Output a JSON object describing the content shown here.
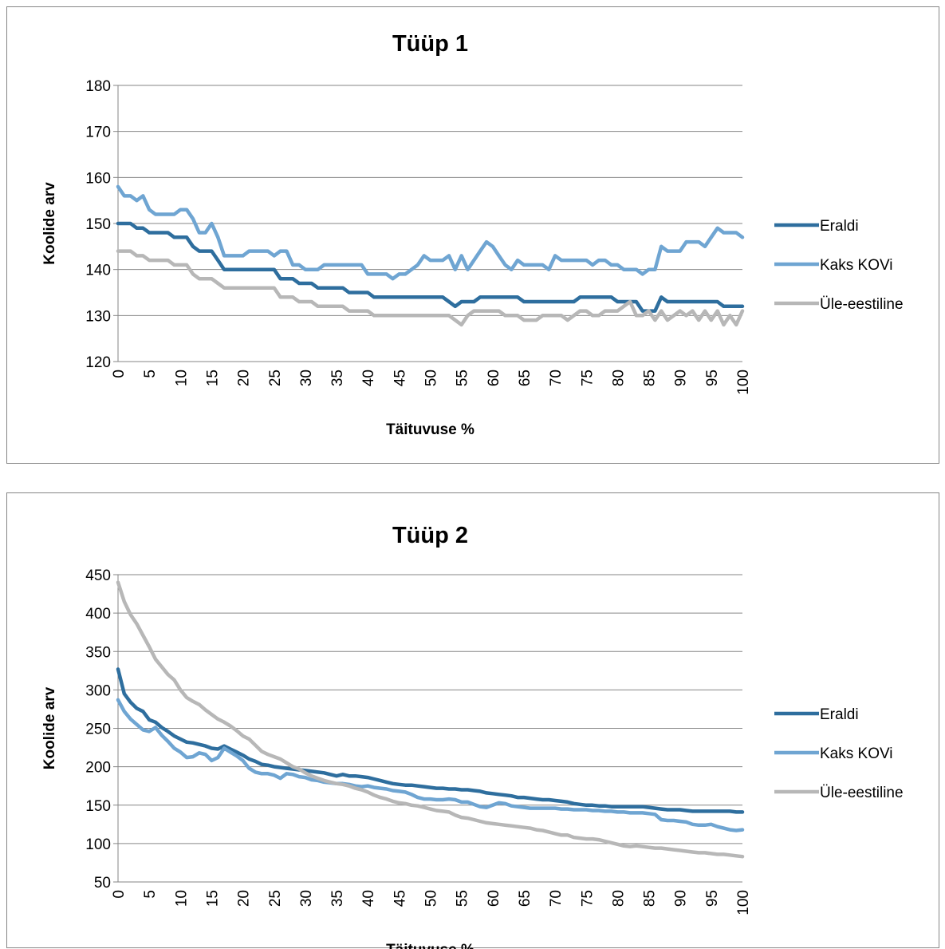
{
  "chart_data": [
    {
      "type": "line",
      "title": "Tüüp 1",
      "xlabel": "Täituvuse %",
      "ylabel": "Koolide arv",
      "xlim": [
        0,
        100
      ],
      "ylim": [
        120,
        180
      ],
      "yticks": [
        "120",
        "130",
        "140",
        "150",
        "160",
        "170",
        "180"
      ],
      "xticks": [
        "0",
        "5",
        "10",
        "15",
        "20",
        "25",
        "30",
        "35",
        "40",
        "45",
        "50",
        "55",
        "60",
        "65",
        "70",
        "75",
        "80",
        "85",
        "90",
        "95",
        "100"
      ],
      "grid": true,
      "legend_position": "right",
      "series": [
        {
          "name": "Eraldi",
          "color": "#2e6e9e",
          "values": [
            150,
            150,
            150,
            149,
            149,
            148,
            148,
            148,
            148,
            147,
            147,
            147,
            145,
            144,
            144,
            144,
            142,
            140,
            140,
            140,
            140,
            140,
            140,
            140,
            140,
            140,
            138,
            138,
            138,
            137,
            137,
            137,
            136,
            136,
            136,
            136,
            136,
            135,
            135,
            135,
            135,
            134,
            134,
            134,
            134,
            134,
            134,
            134,
            134,
            134,
            134,
            134,
            134,
            133,
            132,
            133,
            133,
            133,
            134,
            134,
            134,
            134,
            134,
            134,
            134,
            133,
            133,
            133,
            133,
            133,
            133,
            133,
            133,
            133,
            134,
            134,
            134,
            134,
            134,
            134,
            133,
            133,
            133,
            133,
            131,
            131,
            131,
            134,
            133,
            133,
            133,
            133,
            133,
            133,
            133,
            133,
            133,
            132,
            132,
            132,
            132
          ]
        },
        {
          "name": "Kaks KOVi",
          "color": "#6fa5d2",
          "values": [
            158,
            156,
            156,
            155,
            156,
            153,
            152,
            152,
            152,
            152,
            153,
            153,
            151,
            148,
            148,
            150,
            147,
            143,
            143,
            143,
            143,
            144,
            144,
            144,
            144,
            143,
            144,
            144,
            141,
            141,
            140,
            140,
            140,
            141,
            141,
            141,
            141,
            141,
            141,
            141,
            139,
            139,
            139,
            139,
            138,
            139,
            139,
            140,
            141,
            143,
            142,
            142,
            142,
            143,
            140,
            143,
            140,
            142,
            144,
            146,
            145,
            143,
            141,
            140,
            142,
            141,
            141,
            141,
            141,
            140,
            143,
            142,
            142,
            142,
            142,
            142,
            141,
            142,
            142,
            141,
            141,
            140,
            140,
            140,
            139,
            140,
            140,
            145,
            144,
            144,
            144,
            146,
            146,
            146,
            145,
            147,
            149,
            148,
            148,
            148,
            147
          ]
        },
        {
          "name": "Üle-eestiline",
          "color": "#b7b7b7",
          "values": [
            144,
            144,
            144,
            143,
            143,
            142,
            142,
            142,
            142,
            141,
            141,
            141,
            139,
            138,
            138,
            138,
            137,
            136,
            136,
            136,
            136,
            136,
            136,
            136,
            136,
            136,
            134,
            134,
            134,
            133,
            133,
            133,
            132,
            132,
            132,
            132,
            132,
            131,
            131,
            131,
            131,
            130,
            130,
            130,
            130,
            130,
            130,
            130,
            130,
            130,
            130,
            130,
            130,
            130,
            129,
            128,
            130,
            131,
            131,
            131,
            131,
            131,
            130,
            130,
            130,
            129,
            129,
            129,
            130,
            130,
            130,
            130,
            129,
            130,
            131,
            131,
            130,
            130,
            131,
            131,
            131,
            132,
            133,
            130,
            130,
            131,
            129,
            131,
            129,
            130,
            131,
            130,
            131,
            129,
            131,
            129,
            131,
            128,
            130,
            128,
            131
          ]
        }
      ]
    },
    {
      "type": "line",
      "title": "Tüüp 2",
      "xlabel": "Täituvuse %",
      "ylabel": "Koolide arv",
      "xlim": [
        0,
        100
      ],
      "ylim": [
        50,
        450
      ],
      "yticks": [
        "50",
        "100",
        "150",
        "200",
        "250",
        "300",
        "350",
        "400",
        "450"
      ],
      "xticks": [
        "0",
        "5",
        "10",
        "15",
        "20",
        "25",
        "30",
        "35",
        "40",
        "45",
        "50",
        "55",
        "60",
        "65",
        "70",
        "75",
        "80",
        "85",
        "90",
        "95",
        "100"
      ],
      "grid": true,
      "legend_position": "right",
      "series": [
        {
          "name": "Eraldi",
          "color": "#2e6e9e",
          "values": [
            327,
            295,
            284,
            276,
            272,
            261,
            258,
            251,
            246,
            240,
            236,
            232,
            231,
            229,
            227,
            224,
            223,
            227,
            223,
            219,
            215,
            210,
            207,
            203,
            202,
            200,
            199,
            198,
            197,
            196,
            195,
            194,
            193,
            192,
            190,
            188,
            190,
            188,
            188,
            187,
            186,
            184,
            182,
            180,
            178,
            177,
            176,
            176,
            175,
            174,
            173,
            172,
            172,
            171,
            171,
            170,
            170,
            169,
            168,
            166,
            165,
            164,
            163,
            162,
            160,
            160,
            159,
            158,
            157,
            157,
            156,
            155,
            154,
            152,
            151,
            150,
            150,
            149,
            149,
            148,
            148,
            148,
            148,
            148,
            148,
            147,
            146,
            145,
            144,
            144,
            144,
            143,
            142,
            142,
            142,
            142,
            142,
            142,
            142,
            141,
            141
          ]
        },
        {
          "name": "Kaks KOVi",
          "color": "#6fa5d2",
          "values": [
            287,
            272,
            262,
            255,
            248,
            246,
            251,
            241,
            233,
            224,
            219,
            212,
            213,
            218,
            216,
            208,
            212,
            224,
            219,
            214,
            208,
            198,
            193,
            191,
            191,
            189,
            185,
            191,
            190,
            187,
            186,
            183,
            182,
            180,
            179,
            178,
            178,
            177,
            175,
            174,
            175,
            173,
            172,
            171,
            169,
            168,
            167,
            164,
            160,
            158,
            158,
            157,
            157,
            158,
            157,
            154,
            154,
            151,
            148,
            147,
            150,
            153,
            152,
            149,
            148,
            147,
            146,
            146,
            146,
            146,
            146,
            145,
            145,
            144,
            144,
            144,
            143,
            143,
            142,
            142,
            141,
            141,
            140,
            140,
            140,
            139,
            138,
            131,
            130,
            130,
            129,
            128,
            125,
            124,
            124,
            125,
            122,
            120,
            118,
            117,
            118
          ]
        },
        {
          "name": "Üle-eestiline",
          "color": "#b7b7b7",
          "values": [
            440,
            415,
            398,
            386,
            371,
            356,
            340,
            330,
            320,
            313,
            300,
            290,
            285,
            281,
            274,
            268,
            262,
            258,
            253,
            247,
            240,
            236,
            228,
            220,
            216,
            213,
            210,
            205,
            200,
            197,
            192,
            188,
            185,
            182,
            180,
            178,
            177,
            175,
            172,
            170,
            167,
            163,
            160,
            158,
            155,
            153,
            152,
            150,
            149,
            147,
            145,
            143,
            142,
            141,
            137,
            134,
            133,
            131,
            129,
            127,
            126,
            125,
            124,
            123,
            122,
            121,
            120,
            118,
            117,
            115,
            113,
            111,
            111,
            108,
            107,
            106,
            106,
            105,
            103,
            101,
            99,
            97,
            96,
            97,
            96,
            95,
            94,
            94,
            93,
            92,
            91,
            90,
            89,
            88,
            88,
            87,
            86,
            86,
            85,
            84,
            83
          ]
        }
      ]
    }
  ]
}
